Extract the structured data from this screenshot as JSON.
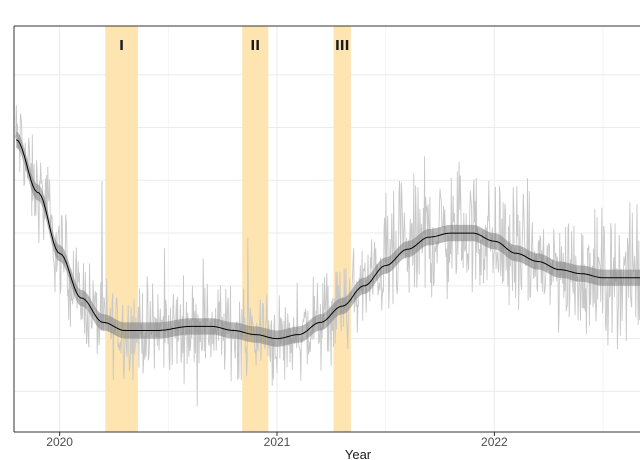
{
  "chart_data": {
    "type": "line",
    "title": "",
    "xlabel": "Year",
    "ylabel": "",
    "x_tick_labels": [
      "2020",
      "2021",
      "2022"
    ],
    "x_ticks": [
      2020.0,
      2021.0,
      2022.0
    ],
    "xlim": [
      2019.79,
      2022.67
    ],
    "ylim": [
      0,
      1
    ],
    "grid": true,
    "legend": "none",
    "shaded_periods": [
      {
        "label": "I",
        "start": 2020.21,
        "end": 2020.36
      },
      {
        "label": "II",
        "start": 2020.84,
        "end": 2020.96
      },
      {
        "label": "III",
        "start": 2021.26,
        "end": 2021.34
      }
    ],
    "smooth_trend": {
      "x": [
        2019.8,
        2019.9,
        2020.0,
        2020.1,
        2020.2,
        2020.3,
        2020.45,
        2020.6,
        2020.7,
        2020.8,
        2020.9,
        2021.0,
        2021.1,
        2021.2,
        2021.3,
        2021.4,
        2021.5,
        2021.6,
        2021.7,
        2021.8,
        2021.9,
        2022.0,
        2022.1,
        2022.2,
        2022.3,
        2022.4,
        2022.5,
        2022.67
      ],
      "y": [
        0.72,
        0.59,
        0.44,
        0.33,
        0.27,
        0.25,
        0.25,
        0.26,
        0.26,
        0.25,
        0.24,
        0.23,
        0.24,
        0.27,
        0.31,
        0.36,
        0.41,
        0.45,
        0.48,
        0.49,
        0.49,
        0.47,
        0.44,
        0.42,
        0.4,
        0.39,
        0.38,
        0.38
      ],
      "band_halfwidth": 0.02
    },
    "raw_series_note": "daily values (light grey) fluctuating around the trend",
    "colors": {
      "shade": "#fde4b0",
      "raw": "#c8c8c8",
      "trend": "#000000",
      "band": "#808080",
      "grid": "#ebebeb"
    }
  }
}
